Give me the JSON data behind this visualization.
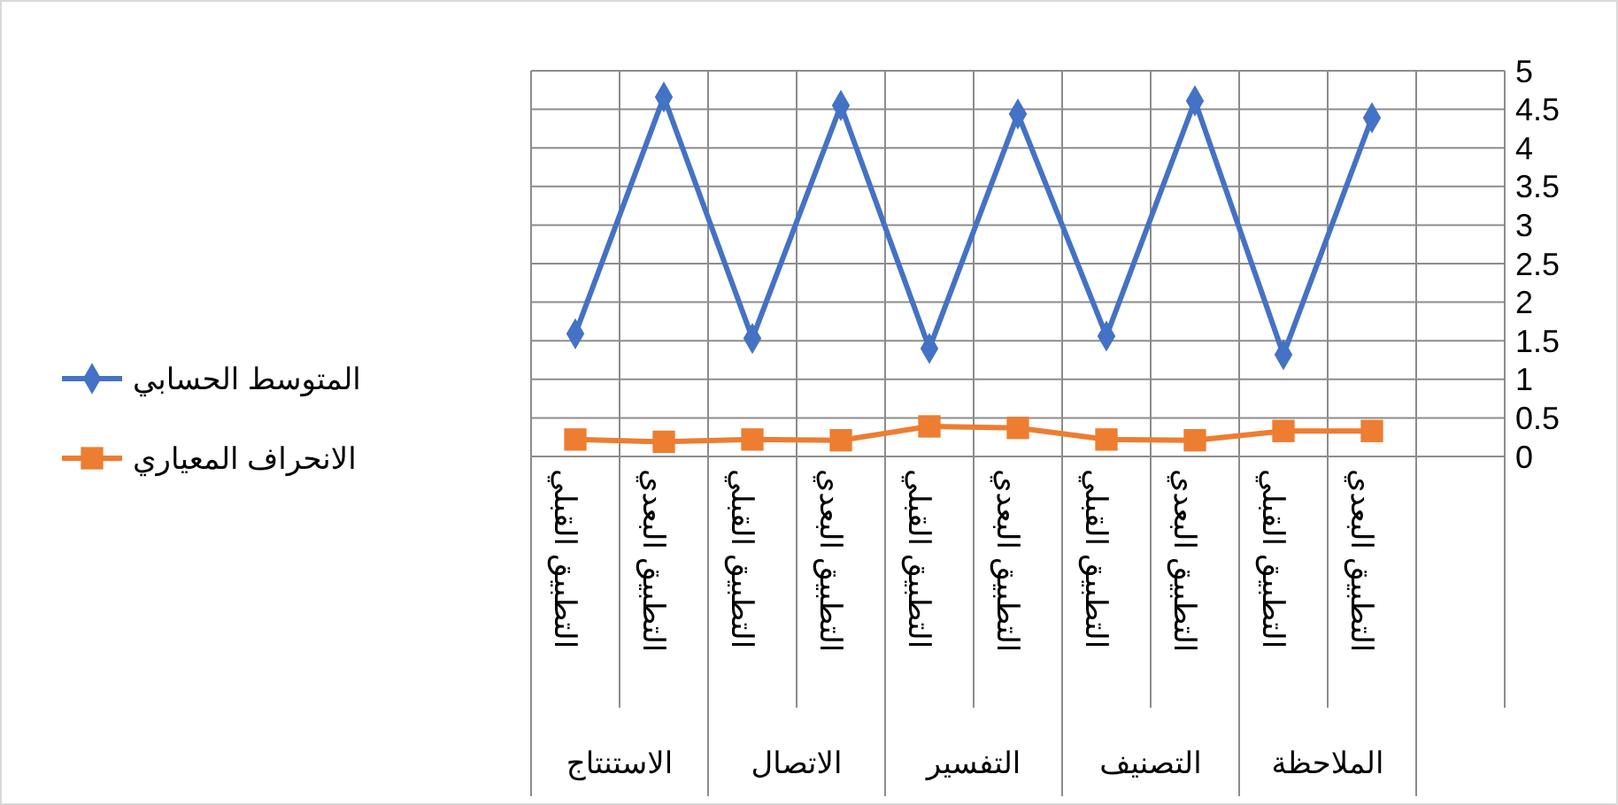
{
  "chart_data": {
    "type": "line",
    "categories": [
      "التطبيق القبلي",
      "التطبيق البعدي",
      "التطبيق القبلي",
      "التطبيق البعدي",
      "التطبيق القبلي",
      "التطبيق البعدي",
      "التطبيق القبلي",
      "التطبيق البعدي",
      "التطبيق القبلي",
      "التطبيق البعدي",
      null
    ],
    "series": [
      {
        "name": "المتوسط الحسابي",
        "color": "#4472c4",
        "marker": "diamond",
        "values": [
          1.59,
          4.66,
          1.53,
          4.55,
          1.4,
          4.44,
          1.56,
          4.61,
          1.32,
          4.39,
          null
        ]
      },
      {
        "name": "الانحراف المعياري",
        "color": "#ed7d31",
        "marker": "square",
        "values": [
          0.22,
          0.19,
          0.22,
          0.21,
          0.39,
          0.37,
          0.22,
          0.21,
          0.33,
          0.33,
          null
        ]
      }
    ],
    "annotations": [
      "الاستنتاج",
      "الاتصال",
      "التفسير",
      "التصنيف",
      "الملاحظة"
    ],
    "ylim": [
      0,
      5
    ],
    "yticks": [
      0,
      0.5,
      1,
      1.5,
      2,
      2.5,
      3,
      3.5,
      4,
      4.5,
      5
    ],
    "grid": true,
    "legend": "left"
  }
}
